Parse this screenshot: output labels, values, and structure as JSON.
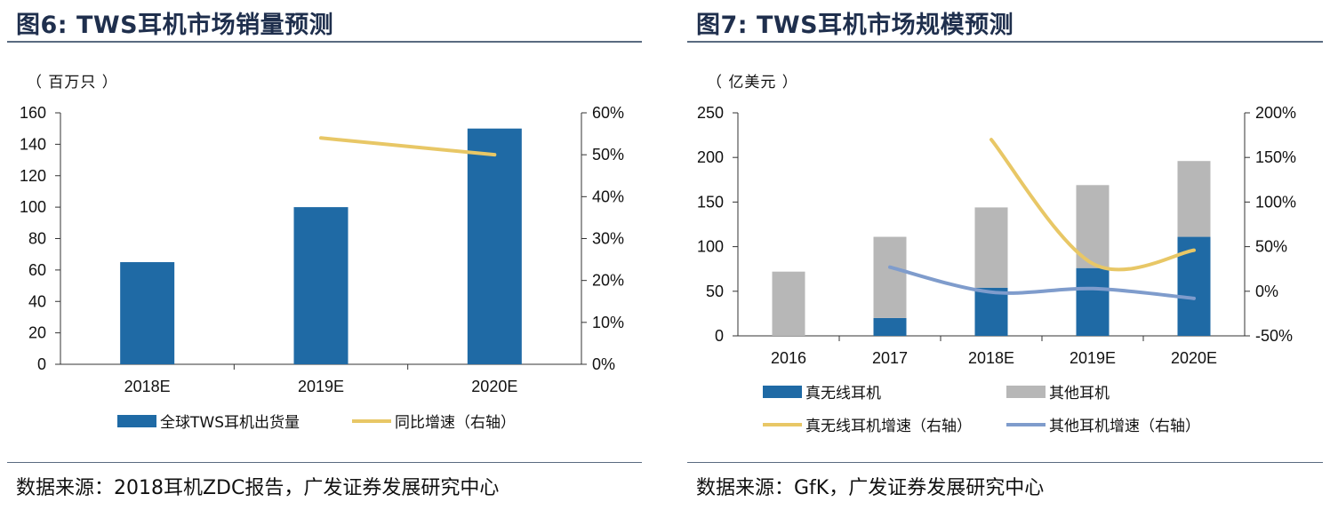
{
  "colors": {
    "primary_blue": "#1f6aa5",
    "gray": "#b7b7b7",
    "yellow_line": "#e8c766",
    "blue_line": "#7f9ccc"
  },
  "figures": [
    {
      "title": "图6:  TWS耳机市场销量预测",
      "unit": "（ 百万只 ）",
      "source": "数据来源：2018耳机ZDC报告，广发证券发展研究中心"
    },
    {
      "title": "图7:  TWS耳机市场规模预测",
      "unit": "（ 亿美元 ）",
      "source": "数据来源：GfK，广发证券发展研究中心"
    }
  ],
  "chart_data": [
    {
      "type": "bar",
      "categories": [
        "2018E",
        "2019E",
        "2020E"
      ],
      "series": [
        {
          "name": "全球TWS耳机出货量",
          "type": "bar",
          "axis": "left",
          "values": [
            65,
            100,
            150
          ]
        },
        {
          "name": "同比增速（右轴）",
          "type": "line",
          "axis": "right",
          "values": [
            null,
            0.54,
            0.5
          ]
        }
      ],
      "ylim": [
        0,
        160
      ],
      "yticks": [
        "0",
        "20",
        "40",
        "60",
        "80",
        "100",
        "120",
        "140",
        "160"
      ],
      "ylim_right": [
        0,
        0.6
      ],
      "yticks_right": [
        "0%",
        "10%",
        "20%",
        "30%",
        "40%",
        "50%",
        "60%"
      ],
      "legend_position": "bottom",
      "grid": false
    },
    {
      "type": "bar",
      "stacked": true,
      "categories": [
        "2016",
        "2017",
        "2018E",
        "2019E",
        "2020E"
      ],
      "series": [
        {
          "name": "真无线耳机",
          "type": "bar",
          "axis": "left",
          "values": [
            0,
            20,
            54,
            76,
            111
          ]
        },
        {
          "name": "其他耳机",
          "type": "bar",
          "axis": "left",
          "values": [
            72,
            91,
            90,
            93,
            85
          ]
        },
        {
          "name": "真无线耳机增速（右轴）",
          "type": "line",
          "axis": "right",
          "values": [
            null,
            null,
            1.7,
            0.31,
            0.46
          ]
        },
        {
          "name": "其他耳机增速（右轴）",
          "type": "line",
          "axis": "right",
          "values": [
            null,
            0.27,
            -0.01,
            0.03,
            -0.08
          ]
        }
      ],
      "ylim": [
        0,
        250
      ],
      "yticks": [
        "0",
        "50",
        "100",
        "150",
        "200",
        "250"
      ],
      "ylim_right": [
        -0.5,
        2.0
      ],
      "yticks_right": [
        "-50%",
        "0%",
        "50%",
        "100%",
        "150%",
        "200%"
      ],
      "legend_position": "bottom",
      "grid": false
    }
  ]
}
